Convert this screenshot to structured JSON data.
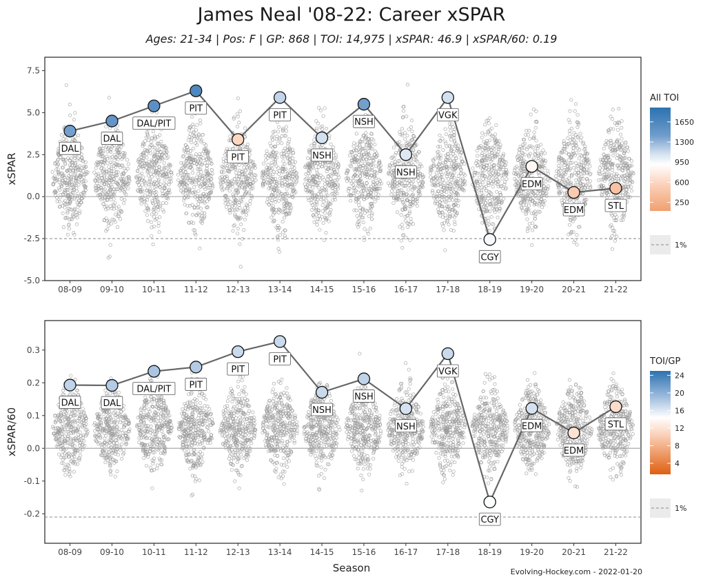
{
  "title": "James Neal '08-22: Career xSPAR",
  "subtitle": "Ages: 21-34 | Pos: F | GP: 868 | TOI: 14,975 | xSPAR: 46.9 | xSPAR/60: 0.19",
  "credit": "Evolving-Hockey.com - 2022-01-20",
  "x_axis_label": "Season",
  "colors": {
    "line": "#666666",
    "frame": "#222222",
    "gradient_high": "#2c72b0",
    "gradient_mid_blue": "#9dbbdd",
    "gradient_white": "#ffffff",
    "gradient_peach": "#fbd0b8",
    "gradient_low": "#de6010"
  },
  "chart_data": [
    {
      "type": "scatter",
      "panel": "top",
      "ylabel": "xSPAR",
      "categories": [
        "08-09",
        "09-10",
        "10-11",
        "11-12",
        "12-13",
        "13-14",
        "14-15",
        "15-16",
        "16-17",
        "17-18",
        "18-19",
        "19-20",
        "20-21",
        "21-22"
      ],
      "ylim": [
        -5.0,
        8.3
      ],
      "yticks": [
        -5.0,
        -2.5,
        0.0,
        2.5,
        5.0,
        7.5
      ],
      "ytick_labels": [
        "-5.0",
        "-2.5",
        "0.0",
        "2.5",
        "5.0",
        "7.5"
      ],
      "reference_line_1pct": -2.5,
      "zero_line": 0,
      "background_points": "league-wide player xSPAR distribution per season (jittered open circles)",
      "series": [
        {
          "values": [
            3.9,
            4.5,
            5.4,
            6.3,
            3.4,
            5.9,
            3.5,
            5.5,
            2.5,
            5.9,
            -2.55,
            1.8,
            0.25,
            0.5
          ],
          "teams": [
            "DAL",
            "DAL",
            "DAL/PIT",
            "PIT",
            "PIT",
            "PIT",
            "NSH",
            "NSH",
            "NSH",
            "VGK",
            "CGY",
            "EDM",
            "EDM",
            "STL"
          ],
          "toi": [
            1400,
            1500,
            1550,
            1650,
            600,
            1150,
            1100,
            1400,
            1050,
            1100,
            950,
            850,
            500,
            420
          ]
        }
      ],
      "legend": {
        "title": "All TOI",
        "gradient_labels": [
          "1650",
          "1300",
          "950",
          "600",
          "250"
        ],
        "gradient_values": [
          1650,
          1300,
          950,
          600,
          250
        ],
        "range": [
          100,
          1900
        ],
        "ref_label": "1%"
      }
    },
    {
      "type": "scatter",
      "panel": "bottom",
      "ylabel": "xSPAR/60",
      "categories": [
        "08-09",
        "09-10",
        "10-11",
        "11-12",
        "12-13",
        "13-14",
        "14-15",
        "15-16",
        "16-17",
        "17-18",
        "18-19",
        "19-20",
        "20-21",
        "21-22"
      ],
      "ylim": [
        -0.29,
        0.39
      ],
      "yticks": [
        -0.2,
        -0.1,
        0.0,
        0.1,
        0.2,
        0.3
      ],
      "ytick_labels": [
        "-0.2",
        "-0.1",
        "0.0",
        "0.1",
        "0.2",
        "0.3"
      ],
      "reference_line_1pct": -0.21,
      "zero_line": 0,
      "background_points": "league-wide player xSPAR/60 distribution per season (jittered open circles)",
      "series": [
        {
          "values": [
            0.193,
            0.192,
            0.235,
            0.248,
            0.295,
            0.326,
            0.171,
            0.212,
            0.121,
            0.289,
            -0.164,
            0.122,
            0.047,
            0.127
          ],
          "teams": [
            "DAL",
            "DAL",
            "DAL/PIT",
            "PIT",
            "PIT",
            "PIT",
            "NSH",
            "NSH",
            "NSH",
            "VGK",
            "CGY",
            "EDM",
            "EDM",
            "STL"
          ],
          "toigp": [
            17.5,
            18,
            18.5,
            18,
            17,
            17,
            17,
            17.5,
            16.5,
            17,
            14.5,
            16.5,
            12,
            11.5
          ]
        }
      ],
      "legend": {
        "title": "TOI/GP",
        "gradient_labels": [
          "24",
          "20",
          "16",
          "12",
          "8",
          "4"
        ],
        "gradient_values": [
          24,
          20,
          16,
          12,
          8,
          4
        ],
        "range": [
          1.5,
          25
        ],
        "ref_label": "1%"
      }
    }
  ]
}
